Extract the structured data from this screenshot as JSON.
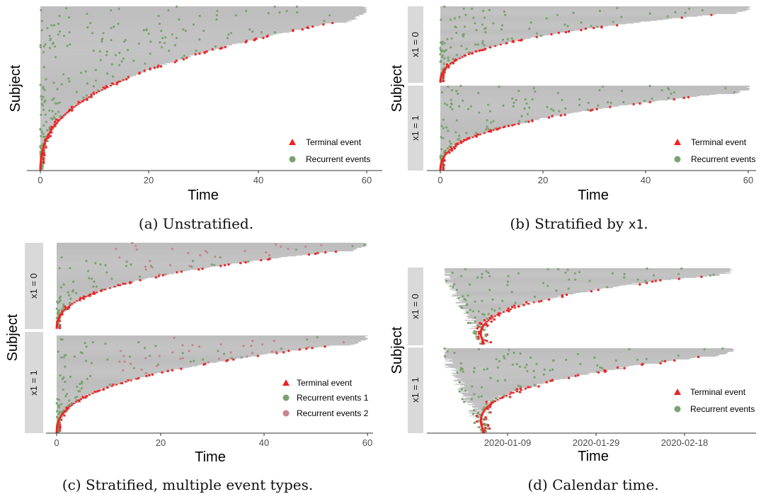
{
  "colors": {
    "bar": "#bebebe",
    "recurrent": "#7aa36f",
    "recurrent2": "#c9838c",
    "terminal": "#ee2222",
    "strip": "#d9d9d9"
  },
  "chart_data": [
    {
      "id": "a",
      "type": "scatter",
      "caption": "(a) Unstratified.",
      "xlabel": "Time",
      "ylabel": "Subject",
      "xticks": [
        "0",
        "20",
        "40",
        "60"
      ],
      "xlim": [
        0,
        60
      ],
      "strips": [],
      "legend": [
        "Terminal event",
        "Recurrent events"
      ]
    },
    {
      "id": "b",
      "type": "scatter",
      "caption_text": "(b) Stratified by ",
      "caption_code": "x1",
      "caption_end": ".",
      "xlabel": "Time",
      "ylabel": "Subject",
      "xticks": [
        "0",
        "20",
        "40",
        "60"
      ],
      "xlim": [
        0,
        60
      ],
      "strips": [
        "x1 = 0",
        "x1 = 1"
      ],
      "legend": [
        "Terminal event",
        "Recurrent events"
      ]
    },
    {
      "id": "c",
      "type": "scatter",
      "caption": "(c) Stratified, multiple event types.",
      "xlabel": "Time",
      "ylabel": "Subject",
      "xticks": [
        "0",
        "20",
        "40",
        "60"
      ],
      "xlim": [
        0,
        60
      ],
      "strips": [
        "x1 = 0",
        "x1 = 1"
      ],
      "legend": [
        "Terminal event",
        "Recurrent events 1",
        "Recurrent events 2"
      ]
    },
    {
      "id": "d",
      "type": "scatter",
      "caption": "(d) Calendar time.",
      "xlabel": "Time",
      "ylabel": "Subject",
      "xticks": [
        "2020-01-09",
        "2020-01-29",
        "2020-02-18"
      ],
      "strips": [
        "x1 = 0",
        "x1 = 1"
      ],
      "legend": [
        "Terminal event",
        "Recurrent events"
      ]
    }
  ]
}
